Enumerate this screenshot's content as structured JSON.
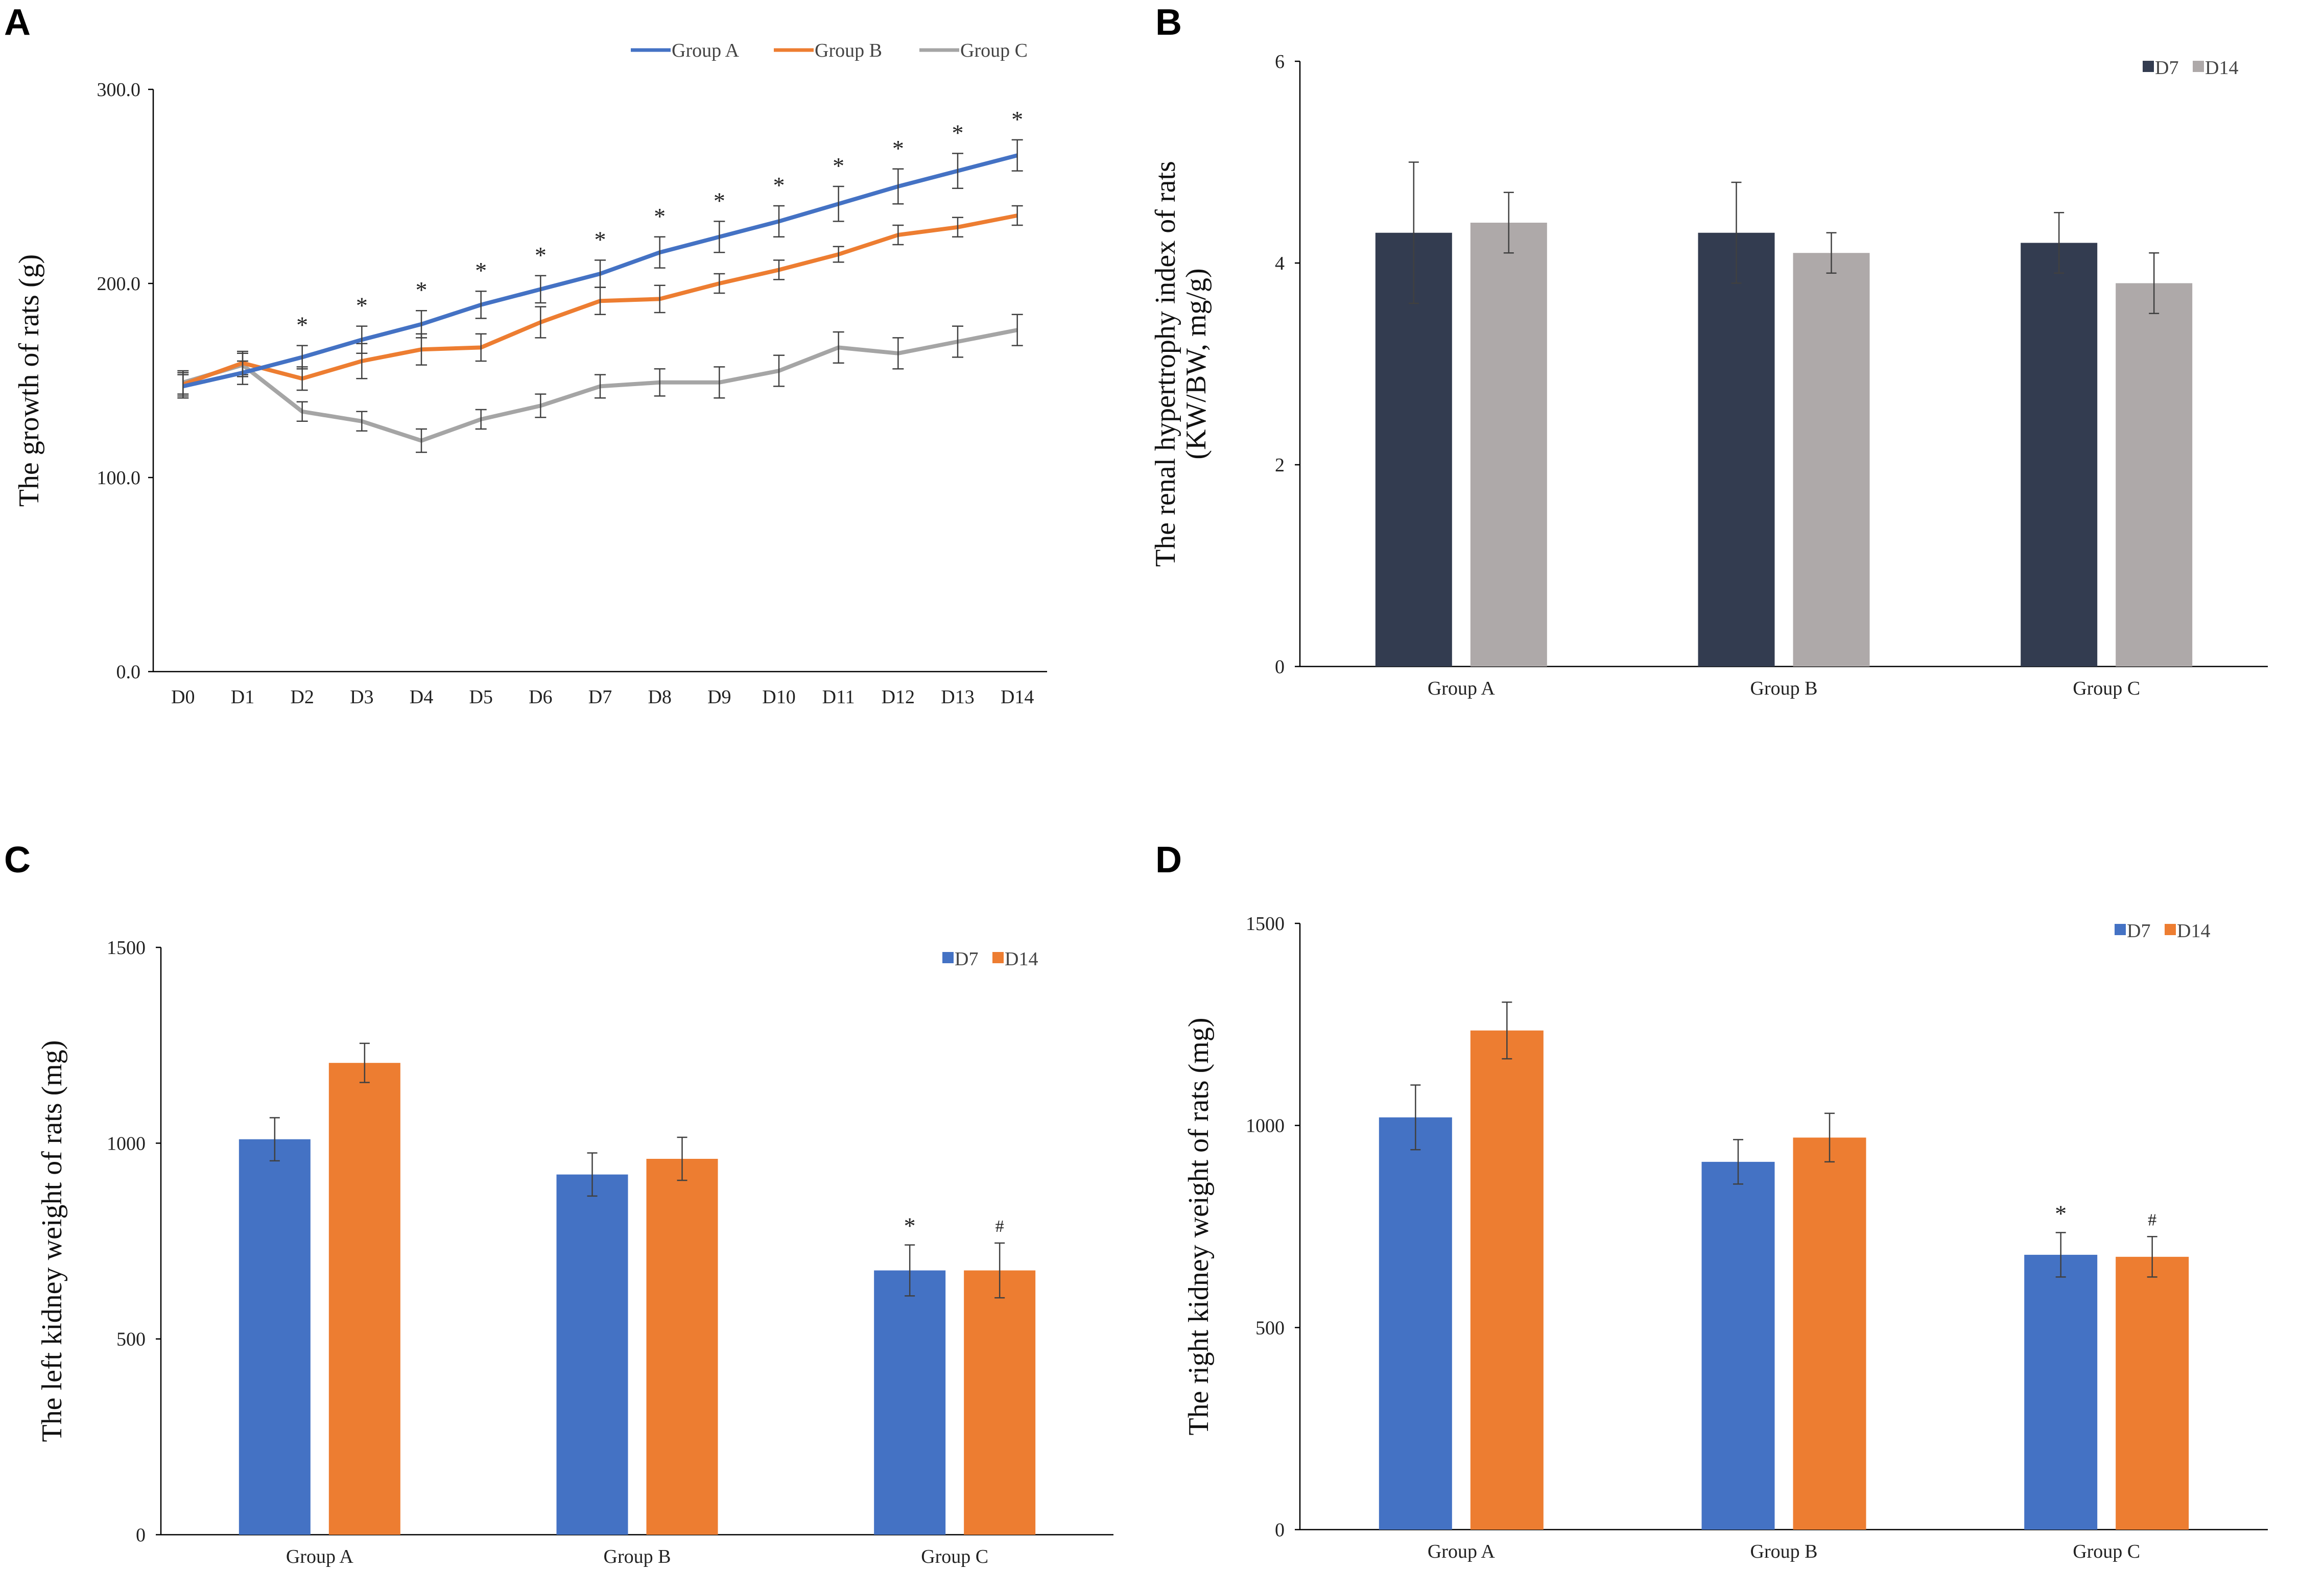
{
  "colors": {
    "group_a": "#4472C4",
    "group_b": "#ED7D31",
    "group_c": "#A5A5A5",
    "bar_dark": "#333C50",
    "bar_light": "#AEA9A9",
    "bar_blue": "#4472C4",
    "bar_orange": "#ED7D31"
  },
  "chart_data": [
    {
      "panel": "A",
      "type": "line",
      "ylabel": "The growth of rats (g)",
      "ylim": [
        0,
        300
      ],
      "yticks": [
        "0.0",
        "100.0",
        "200.0",
        "300.0"
      ],
      "categories": [
        "D0",
        "D1",
        "D2",
        "D3",
        "D4",
        "D5",
        "D6",
        "D7",
        "D8",
        "D9",
        "D10",
        "D11",
        "D12",
        "D13",
        "D14"
      ],
      "series": [
        {
          "name": "Group A",
          "values": [
            147,
            154,
            162,
            171,
            179,
            189,
            197,
            205,
            216,
            224,
            232,
            241,
            250,
            258,
            266
          ],
          "errors": [
            6,
            6,
            6,
            7,
            7,
            7,
            7,
            7,
            8,
            8,
            8,
            9,
            9,
            9,
            8
          ]
        },
        {
          "name": "Group B",
          "values": [
            148,
            159,
            151,
            160,
            166,
            167,
            180,
            191,
            192,
            200,
            207,
            215,
            225,
            229,
            235
          ],
          "errors": [
            6,
            6,
            6,
            9,
            8,
            7,
            8,
            7,
            7,
            5,
            5,
            4,
            5,
            5,
            5
          ]
        },
        {
          "name": "Group C",
          "values": [
            149,
            158,
            134,
            129,
            119,
            130,
            137,
            147,
            149,
            149,
            155,
            167,
            164,
            170,
            176
          ],
          "errors": [
            6,
            6,
            5,
            5,
            6,
            5,
            6,
            6,
            7,
            8,
            8,
            8,
            8,
            8,
            8
          ]
        }
      ],
      "annotations": [
        "",
        "",
        "*",
        "*",
        "*",
        "*",
        "*",
        "*",
        "*",
        "*",
        "*",
        "*",
        "*",
        "*",
        "*"
      ]
    },
    {
      "panel": "B",
      "type": "bar",
      "ylabel_line1": "The renal hypertrophy index of rats",
      "ylabel_line2": "(KW/BW, mg/g)",
      "ylim": [
        0,
        6
      ],
      "yticks": [
        "0",
        "2",
        "4",
        "6"
      ],
      "categories": [
        "Group A",
        "Group B",
        "Group C"
      ],
      "series": [
        {
          "name": "D7",
          "values": [
            4.3,
            4.3,
            4.2
          ],
          "errors": [
            0.7,
            0.5,
            0.3
          ]
        },
        {
          "name": "D14",
          "values": [
            4.4,
            4.1,
            3.8
          ],
          "errors": [
            0.3,
            0.2,
            0.3
          ]
        }
      ],
      "annotations": []
    },
    {
      "panel": "C",
      "type": "bar",
      "ylabel": "The left kidney weight of rats (mg)",
      "ylim": [
        0,
        1500
      ],
      "yticks": [
        "0",
        "500",
        "1000",
        "1500"
      ],
      "categories": [
        "Group A",
        "Group B",
        "Group C"
      ],
      "series": [
        {
          "name": "D7",
          "values": [
            1010,
            920,
            675
          ],
          "errors": [
            55,
            55,
            65
          ]
        },
        {
          "name": "D14",
          "values": [
            1205,
            960,
            675
          ],
          "errors": [
            50,
            55,
            70
          ]
        }
      ],
      "annotations": [
        {
          "category": "Group C",
          "series": "D7",
          "text": "*"
        },
        {
          "category": "Group C",
          "series": "D14",
          "text": "#"
        }
      ]
    },
    {
      "panel": "D",
      "type": "bar",
      "ylabel": "The right kidney weight of rats (mg)",
      "ylim": [
        0,
        1500
      ],
      "yticks": [
        "0",
        "500",
        "1000",
        "1500"
      ],
      "categories": [
        "Group A",
        "Group B",
        "Group C"
      ],
      "series": [
        {
          "name": "D7",
          "values": [
            1020,
            910,
            680
          ],
          "errors": [
            80,
            55,
            55
          ]
        },
        {
          "name": "D14",
          "values": [
            1235,
            970,
            675
          ],
          "errors": [
            70,
            60,
            50
          ]
        }
      ],
      "annotations": [
        {
          "category": "Group C",
          "series": "D7",
          "text": "*"
        },
        {
          "category": "Group C",
          "series": "D14",
          "text": "#"
        }
      ]
    }
  ]
}
